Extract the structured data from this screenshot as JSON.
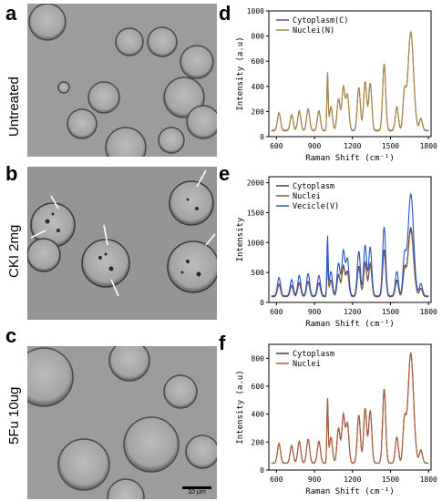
{
  "panels": {
    "a": {
      "letter": "a",
      "label": "Untreated"
    },
    "b": {
      "letter": "b",
      "label": "CKI 2mg"
    },
    "c": {
      "letter": "c",
      "label": "5Fu 10ug",
      "scalebar": "10 μm"
    },
    "d": {
      "letter": "d"
    },
    "e": {
      "letter": "e"
    },
    "f": {
      "letter": "f"
    }
  },
  "chart_data": [
    {
      "type": "line",
      "xlabel": "Raman Shift (cm⁻¹)",
      "ylabel": "Intensity (a.u)",
      "xlim": [
        540,
        1820
      ],
      "ylim": [
        0,
        1000
      ],
      "xticks": [
        600,
        900,
        1200,
        1500,
        1800
      ],
      "yticks": [
        0,
        200,
        400,
        600,
        800,
        1000
      ],
      "legend": "top-left",
      "series": [
        {
          "name": "Cytoplasm(C)",
          "color": "#7a3f8f"
        },
        {
          "name": "Nuclei(N)",
          "color": "#a88a3a"
        }
      ]
    },
    {
      "type": "line",
      "xlabel": "Raman Shift (cm⁻¹)",
      "ylabel": "Intensity",
      "xlim": [
        540,
        1820
      ],
      "ylim": [
        0,
        2100
      ],
      "xticks": [
        600,
        900,
        1200,
        1500,
        1800
      ],
      "yticks": [
        0,
        500,
        1000,
        1500,
        2000
      ],
      "legend": "top-left",
      "series": [
        {
          "name": "Cytoplasm",
          "color": "#404040"
        },
        {
          "name": "Nuclei",
          "color": "#8a5a3a"
        },
        {
          "name": "Vecicle(V)",
          "color": "#2255cc"
        }
      ]
    },
    {
      "type": "line",
      "xlabel": "Raman Shift (cm⁻¹)",
      "ylabel": "Intensity (a.u)",
      "xlim": [
        540,
        1820
      ],
      "ylim": [
        0,
        900
      ],
      "xticks": [
        600,
        900,
        1200,
        1500,
        1800
      ],
      "yticks": [
        0,
        200,
        400,
        600,
        800
      ],
      "legend": "top-left",
      "series": [
        {
          "name": "Cytoplasm",
          "color": "#404040"
        },
        {
          "name": "Nuclei",
          "color": "#b05a3a"
        }
      ]
    }
  ]
}
